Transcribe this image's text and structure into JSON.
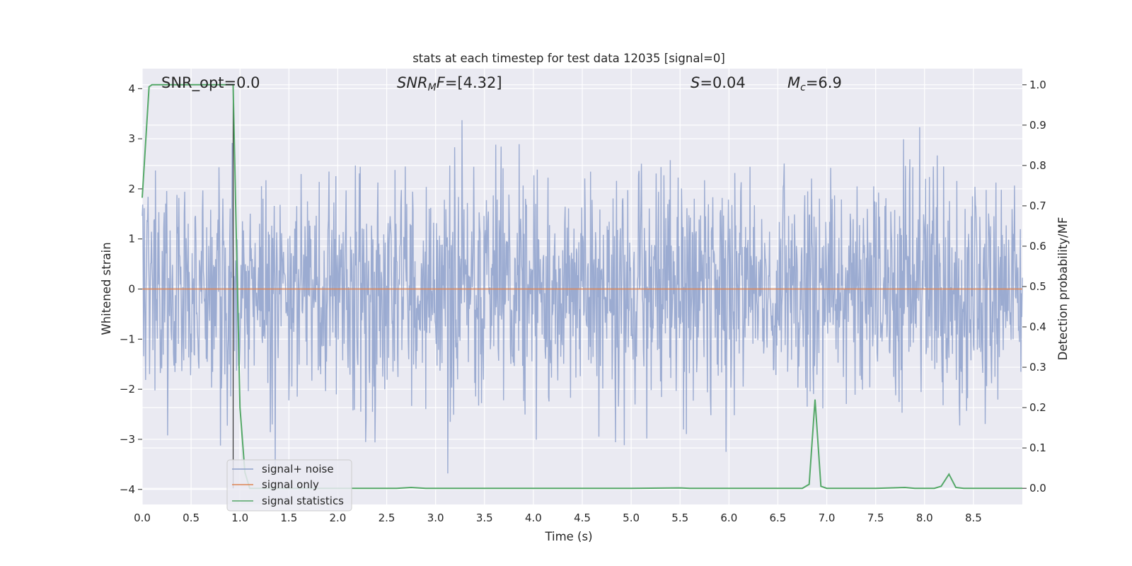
{
  "chart_data": {
    "type": "line",
    "title": "stats at each timestep for test data 12035 [signal=0]",
    "xlabel": "Time (s)",
    "ylabel": "Whitened strain",
    "y2label": "Detection probability/MF",
    "xlim": [
      0,
      9.0
    ],
    "ylim": [
      -4.3,
      4.4
    ],
    "y2lim": [
      -0.04,
      1.04
    ],
    "grid": true,
    "legend_position": "lower-left",
    "xticks": [
      "0.0",
      "0.5",
      "1.0",
      "1.5",
      "2.0",
      "2.5",
      "3.0",
      "3.5",
      "4.0",
      "4.5",
      "5.0",
      "5.5",
      "6.0",
      "6.5",
      "7.0",
      "7.5",
      "8.0",
      "8.5"
    ],
    "yticks": [
      "4",
      "3",
      "2",
      "1",
      "0",
      "−1",
      "−2",
      "−3",
      "−4"
    ],
    "y2ticks": [
      "1.0",
      "0.9",
      "0.8",
      "0.7",
      "0.6",
      "0.5",
      "0.4",
      "0.3",
      "0.2",
      "0.1",
      "0.0"
    ],
    "annotations": {
      "snr_opt": "SNR_opt=0.0",
      "snr_mf_prefix": "SNR",
      "snr_mf_sub": "M",
      "snr_mf_suffix": "F=[4.32]",
      "s_var": "S",
      "s_val": "=0.04",
      "mc_var": "M",
      "mc_sub": "c",
      "mc_val": "=6.9"
    },
    "series": [
      {
        "name": "signal+ noise",
        "color": "#8da0cb",
        "axis": "left",
        "note_values": "dense noise trace, amplitude roughly within [-3.7, 3.7]",
        "envelope_max": 3.7,
        "envelope_min": -3.7
      },
      {
        "name": "signal only",
        "color": "#dd8452",
        "axis": "left",
        "x": [
          0,
          9.0
        ],
        "y": [
          0,
          0
        ]
      },
      {
        "name": "signal statistics",
        "color": "#55a868",
        "axis": "right",
        "x": [
          0,
          0.07,
          0.1,
          0.2,
          0.5,
          0.9,
          0.93,
          0.96,
          1.0,
          1.05,
          1.1,
          1.5,
          2.0,
          2.6,
          2.75,
          2.9,
          3.0,
          4.0,
          5.0,
          5.5,
          5.6,
          6.0,
          6.5,
          6.75,
          6.82,
          6.88,
          6.94,
          7.0,
          7.5,
          7.8,
          7.9,
          8.1,
          8.17,
          8.25,
          8.32,
          8.4,
          9.0
        ],
        "y": [
          0.72,
          0.995,
          1.0,
          1.0,
          1.0,
          1.0,
          1.0,
          0.65,
          0.2,
          0.04,
          0.0,
          0.0,
          0.0,
          0.0,
          0.002,
          0.0,
          0.0,
          0.0,
          0.0,
          0.001,
          0.0,
          0.0,
          0.0,
          0.0,
          0.01,
          0.22,
          0.005,
          0.0,
          0.0,
          0.002,
          0.0,
          0.0,
          0.005,
          0.035,
          0.002,
          0.0,
          0.0
        ]
      }
    ],
    "vline_x": 0.93
  }
}
